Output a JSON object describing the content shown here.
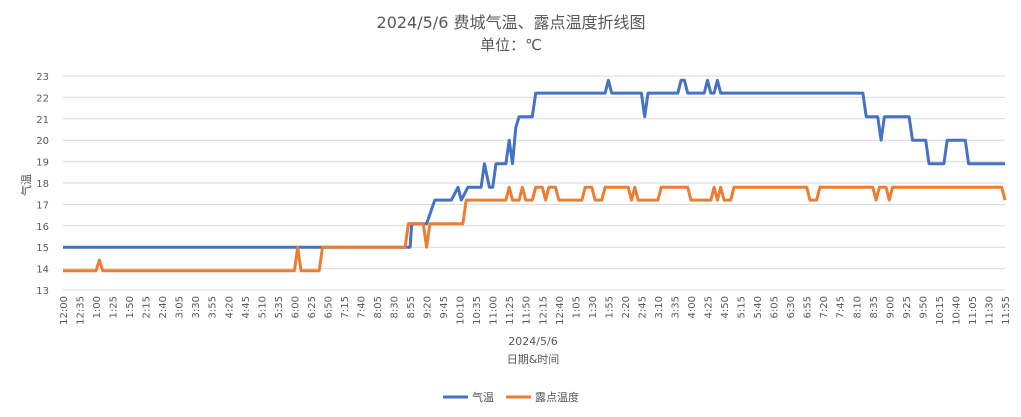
{
  "chart_data": {
    "type": "line",
    "title": "2024/5/6 费城气温、露点温度折线图",
    "subtitle": "单位：℃",
    "xlabel": "2024/5/6",
    "xlabel2": "日期&时间",
    "ylabel": "气温",
    "ylim": [
      13,
      23
    ],
    "yticks": [
      13,
      14,
      15,
      16,
      17,
      18,
      19,
      20,
      21,
      22,
      23
    ],
    "grid": true,
    "legend_position": "bottom",
    "x_ticks": [
      "12:00",
      "12:35",
      "1:00",
      "1:25",
      "1:50",
      "2:15",
      "2:40",
      "3:05",
      "3:30",
      "3:55",
      "4:20",
      "4:45",
      "5:10",
      "5:35",
      "6:00",
      "6:25",
      "6:50",
      "7:15",
      "7:40",
      "8:05",
      "8:30",
      "8:55",
      "9:20",
      "9:45",
      "10:10",
      "10:35",
      "11:00",
      "11:25",
      "11:50",
      "12:15",
      "12:40",
      "1:05",
      "1:30",
      "1:55",
      "2:20",
      "2:45",
      "3:10",
      "3:35",
      "4:00",
      "4:25",
      "4:50",
      "5:15",
      "5:40",
      "6:05",
      "6:30",
      "6:55",
      "7:20",
      "7:45",
      "8:10",
      "8:35",
      "9:00",
      "9:25",
      "9:50",
      "10:15",
      "10:40",
      "11:05",
      "11:30",
      "11:55"
    ],
    "series": [
      {
        "name": "气温",
        "color": "#4472c4",
        "points": [
          [
            0,
            15
          ],
          [
            14,
            15
          ],
          [
            15,
            15
          ],
          [
            20,
            15
          ],
          [
            21,
            15
          ],
          [
            21.1,
            16.1
          ],
          [
            22,
            16.1
          ],
          [
            22.5,
            17.2
          ],
          [
            23.5,
            17.2
          ],
          [
            23.9,
            17.8
          ],
          [
            24.1,
            17.2
          ],
          [
            24.5,
            17.8
          ],
          [
            25.3,
            17.8
          ],
          [
            25.5,
            18.9
          ],
          [
            25.8,
            17.8
          ],
          [
            26.0,
            17.8
          ],
          [
            26.2,
            18.9
          ],
          [
            26.8,
            18.9
          ],
          [
            27.0,
            20.0
          ],
          [
            27.2,
            18.9
          ],
          [
            27.4,
            20.6
          ],
          [
            27.6,
            21.1
          ],
          [
            28.4,
            21.1
          ],
          [
            28.6,
            22.2
          ],
          [
            32.8,
            22.2
          ],
          [
            33.0,
            22.8
          ],
          [
            33.2,
            22.2
          ],
          [
            35.0,
            22.2
          ],
          [
            35.2,
            21.1
          ],
          [
            35.4,
            22.2
          ],
          [
            37.2,
            22.2
          ],
          [
            37.4,
            22.8
          ],
          [
            37.6,
            22.8
          ],
          [
            37.8,
            22.2
          ],
          [
            38.8,
            22.2
          ],
          [
            39.0,
            22.8
          ],
          [
            39.2,
            22.2
          ],
          [
            39.4,
            22.2
          ],
          [
            39.6,
            22.8
          ],
          [
            39.8,
            22.2
          ],
          [
            48.4,
            22.2
          ],
          [
            48.6,
            21.1
          ],
          [
            49.3,
            21.1
          ],
          [
            49.5,
            20.0
          ],
          [
            49.7,
            21.1
          ],
          [
            51.2,
            21.1
          ],
          [
            51.4,
            20.0
          ],
          [
            52.2,
            20.0
          ],
          [
            52.4,
            18.9
          ],
          [
            53.3,
            18.9
          ],
          [
            53.5,
            20.0
          ],
          [
            54.6,
            20.0
          ],
          [
            54.8,
            18.9
          ],
          [
            56.0,
            18.9
          ],
          [
            57.0,
            18.9
          ]
        ]
      },
      {
        "name": "露点温度",
        "color": "#ed7d31",
        "points": [
          [
            0,
            13.9
          ],
          [
            2.0,
            13.9
          ],
          [
            2.2,
            14.4
          ],
          [
            2.4,
            13.9
          ],
          [
            11.0,
            13.9
          ],
          [
            14.0,
            13.9
          ],
          [
            14.2,
            15.0
          ],
          [
            14.4,
            13.9
          ],
          [
            15.5,
            13.9
          ],
          [
            15.7,
            15.0
          ],
          [
            20.7,
            15.0
          ],
          [
            20.9,
            16.1
          ],
          [
            21.8,
            16.1
          ],
          [
            22.0,
            15.0
          ],
          [
            22.2,
            16.1
          ],
          [
            24.2,
            16.1
          ],
          [
            24.4,
            17.2
          ],
          [
            26.8,
            17.2
          ],
          [
            27.0,
            17.8
          ],
          [
            27.2,
            17.2
          ],
          [
            27.6,
            17.2
          ],
          [
            27.8,
            17.8
          ],
          [
            28.0,
            17.2
          ],
          [
            28.4,
            17.2
          ],
          [
            28.6,
            17.8
          ],
          [
            29.0,
            17.8
          ],
          [
            29.2,
            17.2
          ],
          [
            29.4,
            17.8
          ],
          [
            29.8,
            17.8
          ],
          [
            30.0,
            17.2
          ],
          [
            31.4,
            17.2
          ],
          [
            31.6,
            17.8
          ],
          [
            32.0,
            17.8
          ],
          [
            32.2,
            17.2
          ],
          [
            32.6,
            17.2
          ],
          [
            32.8,
            17.8
          ],
          [
            34.2,
            17.8
          ],
          [
            34.4,
            17.2
          ],
          [
            34.6,
            17.8
          ],
          [
            34.8,
            17.2
          ],
          [
            36.0,
            17.2
          ],
          [
            36.2,
            17.8
          ],
          [
            37.8,
            17.8
          ],
          [
            38.0,
            17.2
          ],
          [
            39.2,
            17.2
          ],
          [
            39.4,
            17.8
          ],
          [
            39.6,
            17.2
          ],
          [
            39.8,
            17.8
          ],
          [
            40.0,
            17.2
          ],
          [
            40.4,
            17.2
          ],
          [
            40.6,
            17.8
          ],
          [
            45.0,
            17.8
          ],
          [
            45.2,
            17.2
          ],
          [
            45.6,
            17.2
          ],
          [
            45.8,
            17.8
          ],
          [
            49.0,
            17.8
          ],
          [
            49.2,
            17.2
          ],
          [
            49.4,
            17.8
          ],
          [
            49.8,
            17.8
          ],
          [
            50.0,
            17.2
          ],
          [
            50.2,
            17.8
          ],
          [
            56.8,
            17.8
          ],
          [
            57.0,
            17.2
          ]
        ]
      }
    ]
  }
}
